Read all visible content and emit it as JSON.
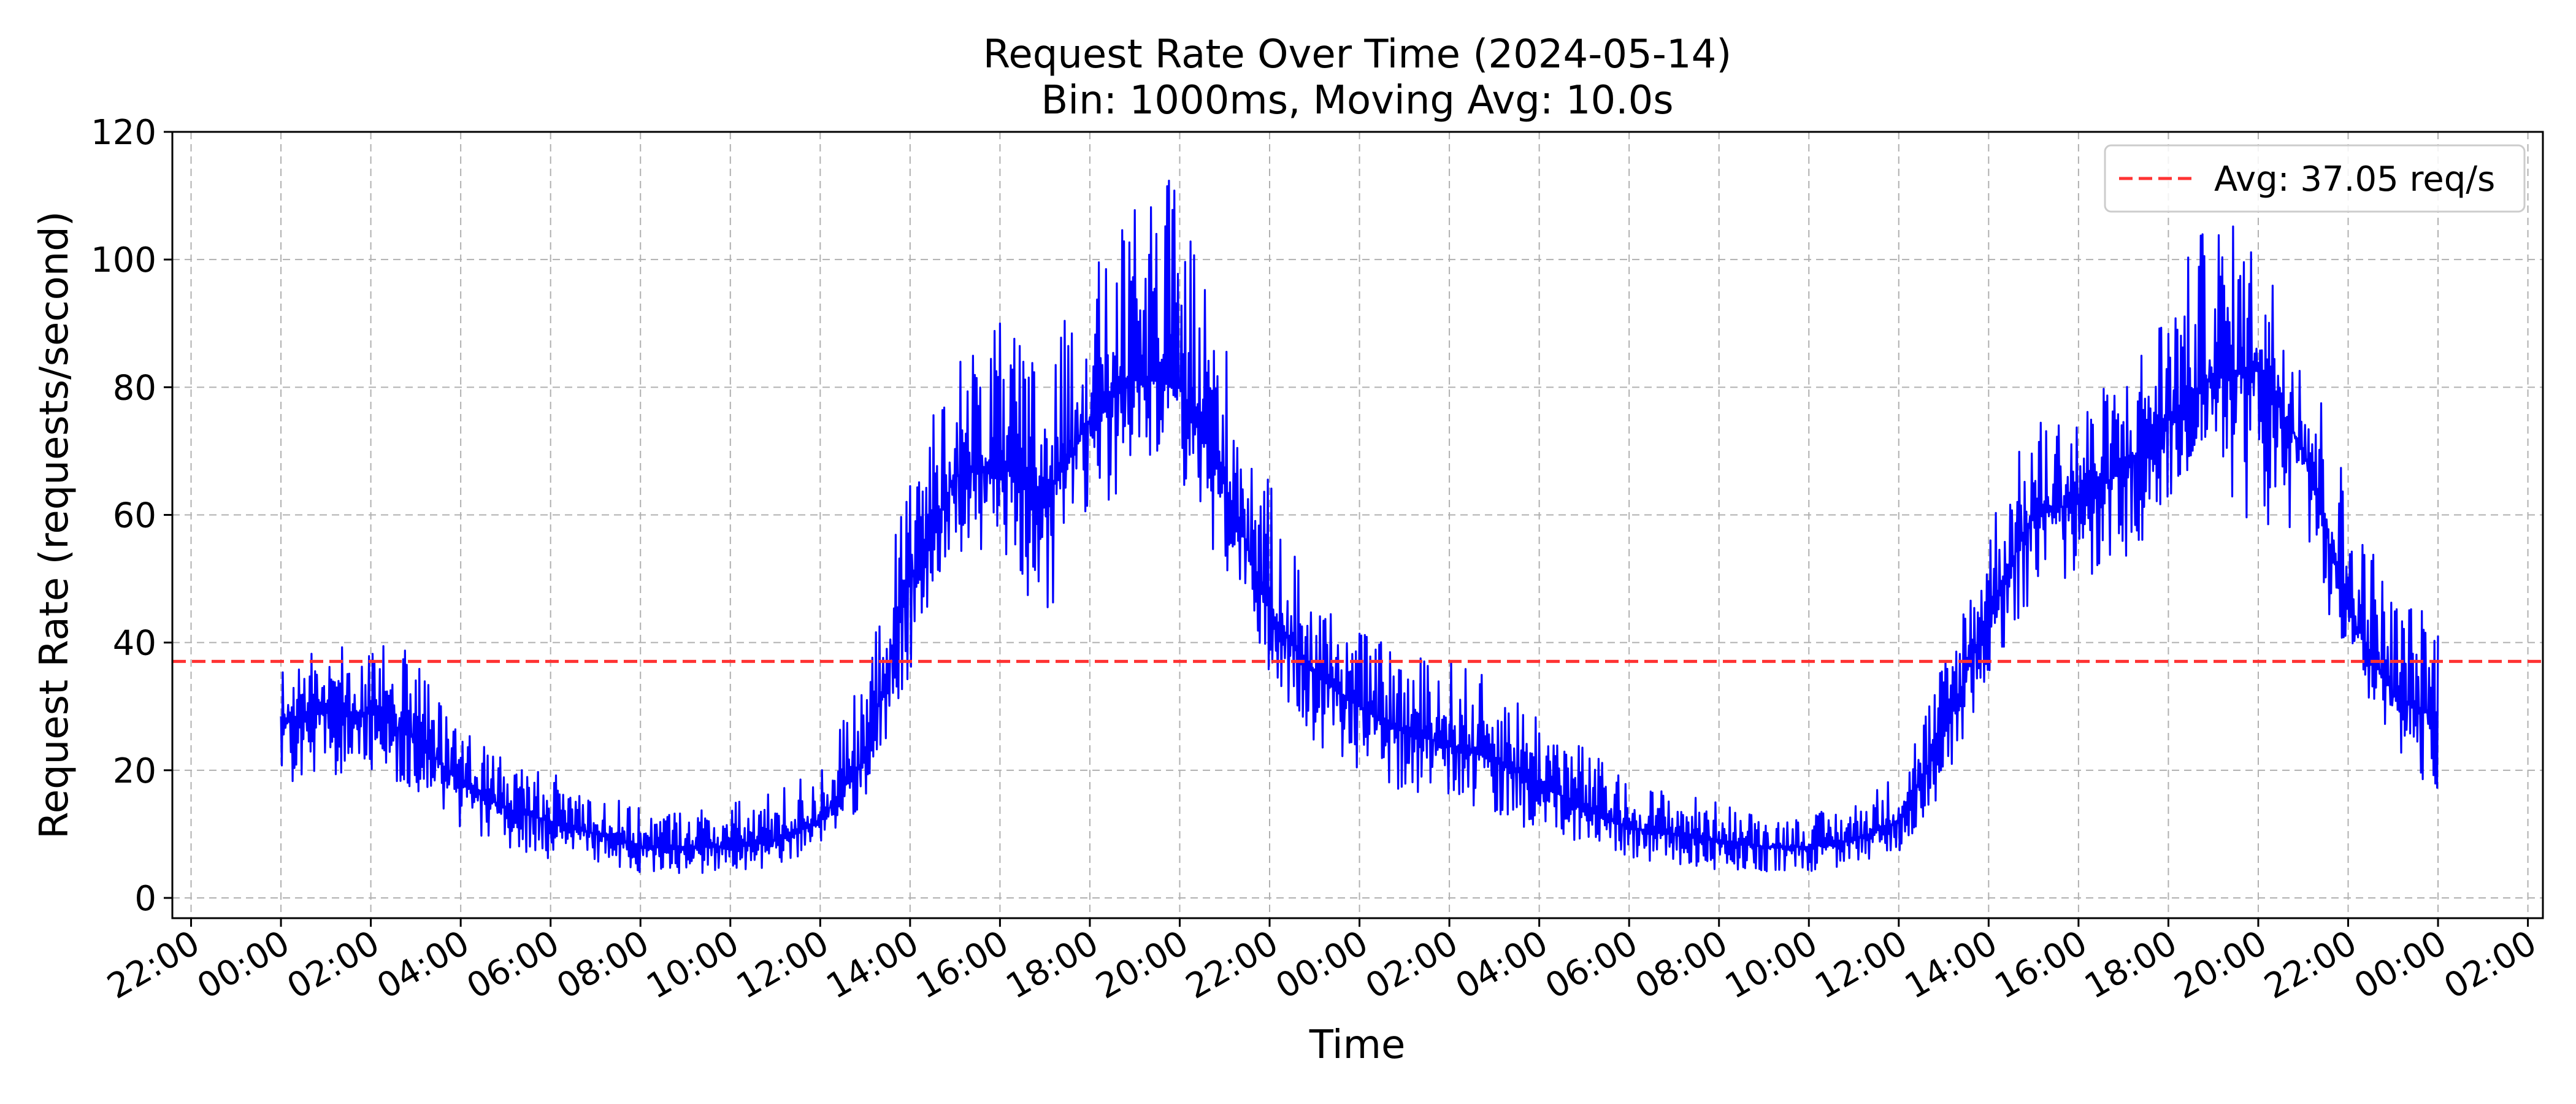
{
  "chart_data": {
    "type": "line",
    "title": "Request Rate Over Time (2024-05-14)",
    "subtitle": "Bin: 1000ms, Moving Avg: 10.0s",
    "xlabel": "Time",
    "ylabel": "Request Rate (requests/second)",
    "ylim": [
      0,
      120
    ],
    "yticks": [
      0,
      20,
      40,
      60,
      80,
      100,
      120
    ],
    "xlim": [
      "2024-05-13 21:35",
      "2024-05-16 02:20"
    ],
    "xticks": [
      {
        "t": "2024-05-13 22:00",
        "label": "22:00"
      },
      {
        "t": "2024-05-14 00:00",
        "label": "00:00"
      },
      {
        "t": "2024-05-14 02:00",
        "label": "02:00"
      },
      {
        "t": "2024-05-14 04:00",
        "label": "04:00"
      },
      {
        "t": "2024-05-14 06:00",
        "label": "06:00"
      },
      {
        "t": "2024-05-14 08:00",
        "label": "08:00"
      },
      {
        "t": "2024-05-14 10:00",
        "label": "10:00"
      },
      {
        "t": "2024-05-14 12:00",
        "label": "12:00"
      },
      {
        "t": "2024-05-14 14:00",
        "label": "14:00"
      },
      {
        "t": "2024-05-14 16:00",
        "label": "16:00"
      },
      {
        "t": "2024-05-14 18:00",
        "label": "18:00"
      },
      {
        "t": "2024-05-14 20:00",
        "label": "20:00"
      },
      {
        "t": "2024-05-14 22:00",
        "label": "22:00"
      },
      {
        "t": "2024-05-15 00:00",
        "label": "00:00"
      },
      {
        "t": "2024-05-15 02:00",
        "label": "02:00"
      },
      {
        "t": "2024-05-15 04:00",
        "label": "04:00"
      },
      {
        "t": "2024-05-15 06:00",
        "label": "06:00"
      },
      {
        "t": "2024-05-15 08:00",
        "label": "08:00"
      },
      {
        "t": "2024-05-15 10:00",
        "label": "10:00"
      },
      {
        "t": "2024-05-15 12:00",
        "label": "12:00"
      },
      {
        "t": "2024-05-15 14:00",
        "label": "14:00"
      },
      {
        "t": "2024-05-15 16:00",
        "label": "16:00"
      },
      {
        "t": "2024-05-15 18:00",
        "label": "18:00"
      },
      {
        "t": "2024-05-15 20:00",
        "label": "20:00"
      },
      {
        "t": "2024-05-15 22:00",
        "label": "22:00"
      },
      {
        "t": "2024-05-16 00:00",
        "label": "00:00"
      },
      {
        "t": "2024-05-16 02:00",
        "label": "02:00"
      }
    ],
    "grid": true,
    "legend_position": "top-right",
    "average_line": {
      "value": 37.05,
      "label": "Avg: 37.05 req/s",
      "color": "#ff3333",
      "style": "dashed"
    },
    "series": [
      {
        "name": "",
        "color": "#0000ff",
        "x": [
          "2024-05-14 00:00",
          "2024-05-14 01:00",
          "2024-05-14 02:00",
          "2024-05-14 03:00",
          "2024-05-14 04:00",
          "2024-05-14 05:00",
          "2024-05-14 06:00",
          "2024-05-14 07:00",
          "2024-05-14 08:00",
          "2024-05-14 09:00",
          "2024-05-14 10:00",
          "2024-05-14 11:00",
          "2024-05-14 12:00",
          "2024-05-14 13:00",
          "2024-05-14 14:00",
          "2024-05-14 15:00",
          "2024-05-14 16:00",
          "2024-05-14 17:00",
          "2024-05-14 18:00",
          "2024-05-14 19:00",
          "2024-05-14 20:00",
          "2024-05-14 21:00",
          "2024-05-14 22:00",
          "2024-05-14 23:00",
          "2024-05-15 00:00",
          "2024-05-15 01:00",
          "2024-05-15 02:00",
          "2024-05-15 03:00",
          "2024-05-15 04:00",
          "2024-05-15 05:00",
          "2024-05-15 06:00",
          "2024-05-15 07:00",
          "2024-05-15 08:00",
          "2024-05-15 09:00",
          "2024-05-15 10:00",
          "2024-05-15 11:00",
          "2024-05-15 12:00",
          "2024-05-15 13:00",
          "2024-05-15 14:00",
          "2024-05-15 15:00",
          "2024-05-15 16:00",
          "2024-05-15 17:00",
          "2024-05-15 18:00",
          "2024-05-15 19:00",
          "2024-05-15 20:00",
          "2024-05-15 21:00",
          "2024-05-15 22:00",
          "2024-05-15 23:00",
          "2024-05-16 00:00"
        ],
        "mean": [
          28,
          29,
          29,
          25,
          18,
          14,
          12,
          10,
          8,
          8,
          8,
          9,
          12,
          22,
          50,
          66,
          68,
          62,
          75,
          82,
          80,
          65,
          45,
          35,
          30,
          26,
          24,
          22,
          18,
          14,
          11,
          10,
          9,
          8,
          8,
          9,
          12,
          25,
          45,
          60,
          62,
          67,
          75,
          82,
          83,
          70,
          45,
          32,
          28
        ],
        "low": [
          16,
          19,
          20,
          17,
          11,
          8,
          6,
          5,
          4,
          3,
          4,
          5,
          7,
          15,
          35,
          52,
          55,
          42,
          60,
          65,
          65,
          50,
          35,
          24,
          18,
          16,
          14,
          13,
          10,
          7,
          6,
          5,
          4,
          4,
          4,
          5,
          7,
          17,
          35,
          47,
          50,
          52,
          60,
          68,
          55,
          57,
          35,
          22,
          16
        ],
        "high": [
          37,
          39,
          42,
          39,
          28,
          22,
          20,
          17,
          14,
          14,
          15,
          17,
          21,
          35,
          68,
          85,
          90,
          85,
          98,
          108,
          114,
          88,
          65,
          48,
          42,
          38,
          38,
          34,
          30,
          24,
          18,
          17,
          15,
          13,
          13,
          15,
          20,
          38,
          60,
          75,
          78,
          82,
          95,
          108,
          103,
          90,
          65,
          48,
          45
        ]
      }
    ]
  }
}
